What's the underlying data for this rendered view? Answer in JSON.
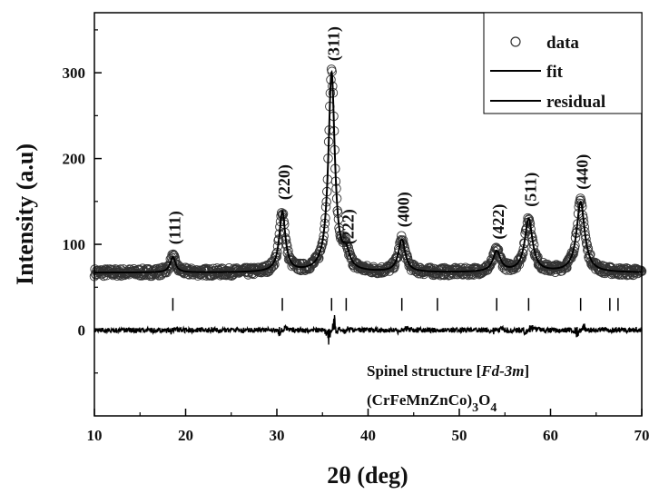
{
  "chart_data": {
    "type": "line",
    "xlabel": "2θ (deg)",
    "ylabel": "Intensity (a.u)",
    "xlim": [
      10,
      70
    ],
    "ylim": [
      -100,
      370
    ],
    "x_ticks": [
      "10",
      "20",
      "30",
      "40",
      "50",
      "60",
      "70"
    ],
    "y_ticks": [
      "0",
      "100",
      "200",
      "300"
    ],
    "legend": {
      "placement": "top-right",
      "entries": [
        "data",
        "fit",
        "residual"
      ]
    },
    "baseline": 67,
    "peaks": [
      {
        "label": "(111)",
        "x": 18.6,
        "height": 18
      },
      {
        "label": "(220)",
        "x": 30.6,
        "height": 70
      },
      {
        "label": "(311)",
        "x": 36.0,
        "height": 232
      },
      {
        "label": "(222)",
        "x": 37.6,
        "height": 18
      },
      {
        "label": "(400)",
        "x": 43.7,
        "height": 38
      },
      {
        "label": "(422)",
        "x": 54.1,
        "height": 24
      },
      {
        "label": "(511)",
        "x": 57.6,
        "height": 62
      },
      {
        "label": "(440)",
        "x": 63.3,
        "height": 82
      }
    ],
    "reflection_ticks": [
      18.6,
      30.6,
      36.0,
      37.6,
      43.7,
      47.6,
      54.1,
      57.6,
      63.3,
      66.5,
      67.4
    ],
    "reflection_tick_y": 30,
    "residual_offset": 0,
    "annotation": {
      "line1_prefix": "Spinel structure [",
      "line1_italic": "Fd-3m",
      "line1_suffix": "]",
      "line2_main": "(CrFeMnZnCo)",
      "line2_sub1": "3",
      "line2_mid": "O",
      "line2_sub2": "4"
    },
    "colors": {
      "data_marker": "#333333",
      "fit": "#000000",
      "residual": "#000000"
    }
  }
}
